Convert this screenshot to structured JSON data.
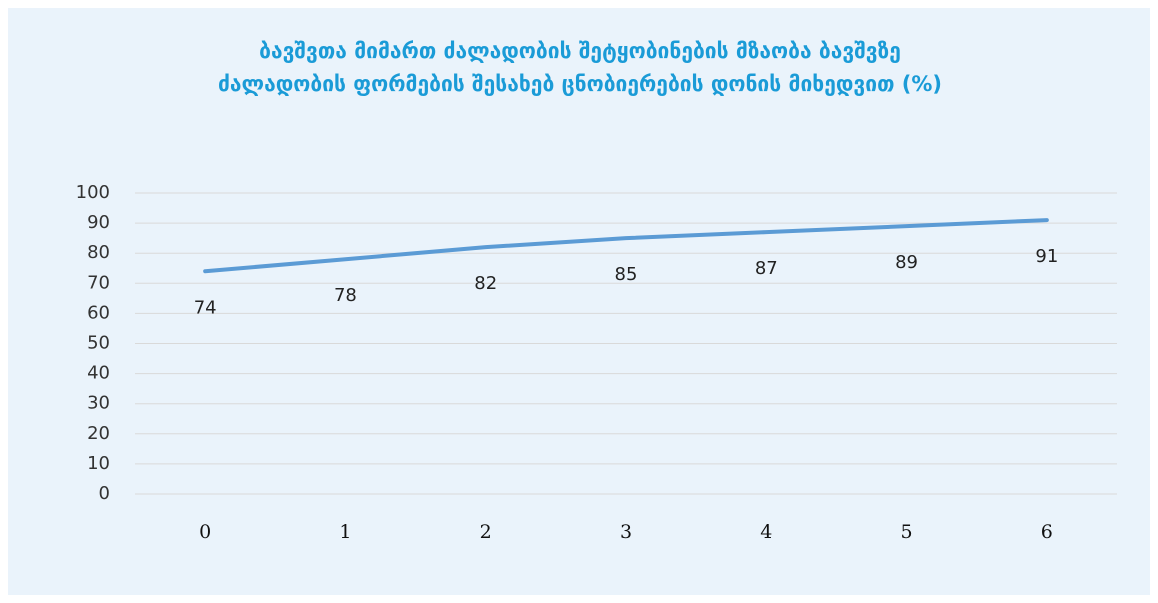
{
  "chart_data": {
    "type": "line",
    "title": [
      "ბავშვთა მიმართ ძალადობის შეტყობინების მზაობა ბავშვზე",
      "ძალადობის ფორმების შესახებ ცნობიერების დონის მიხედვით (%)"
    ],
    "categories": [
      "0",
      "1",
      "2",
      "3",
      "4",
      "5",
      "6"
    ],
    "series": [
      {
        "color": "#5b9bd5",
        "values": [
          74,
          78,
          82,
          85,
          87,
          89,
          91
        ]
      }
    ],
    "ylim": [
      0,
      100
    ],
    "yticks": [
      0,
      10,
      20,
      30,
      40,
      50,
      60,
      70,
      80,
      90,
      100
    ],
    "grid": true
  }
}
